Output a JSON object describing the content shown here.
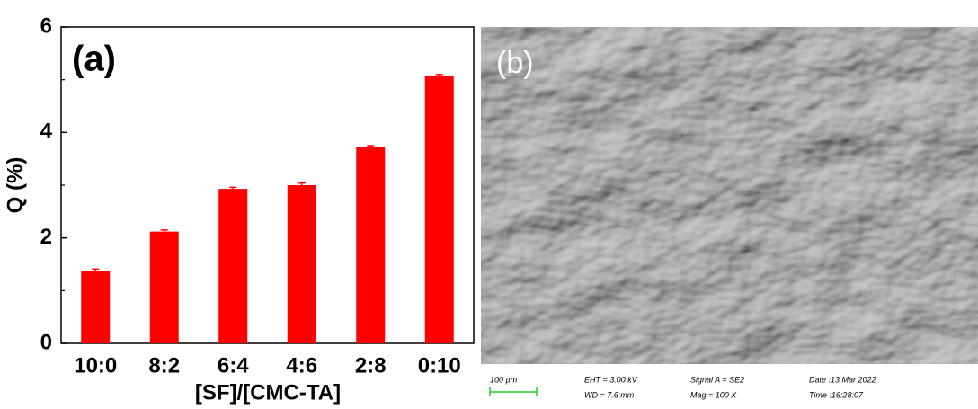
{
  "chart_data": {
    "type": "bar",
    "panel_label": "(a)",
    "xlabel": "[SF]/[CMC-TA]",
    "ylabel": "Q (%)",
    "categories": [
      "10:0",
      "8:2",
      "6:4",
      "4:6",
      "2:8",
      "0:10"
    ],
    "values": [
      1.38,
      2.12,
      2.93,
      3.0,
      3.72,
      5.07
    ],
    "errors": [
      0.03,
      0.03,
      0.03,
      0.04,
      0.03,
      0.03
    ],
    "color": "#ff0000",
    "ylim": [
      0,
      6
    ],
    "yticks": [
      0,
      2,
      4,
      6
    ],
    "minor_yticks": [
      1,
      3,
      5
    ],
    "grid": false
  },
  "sem_image": {
    "panel_label": "(b)",
    "scale_bar": "100 µm",
    "info": [
      "EHT =  3.00 kV",
      "WD =  7.6 mm",
      "Signal A = SE2",
      "Mag =    100 X",
      "Date :13 Mar 2022",
      "Time :16:28:07"
    ]
  }
}
